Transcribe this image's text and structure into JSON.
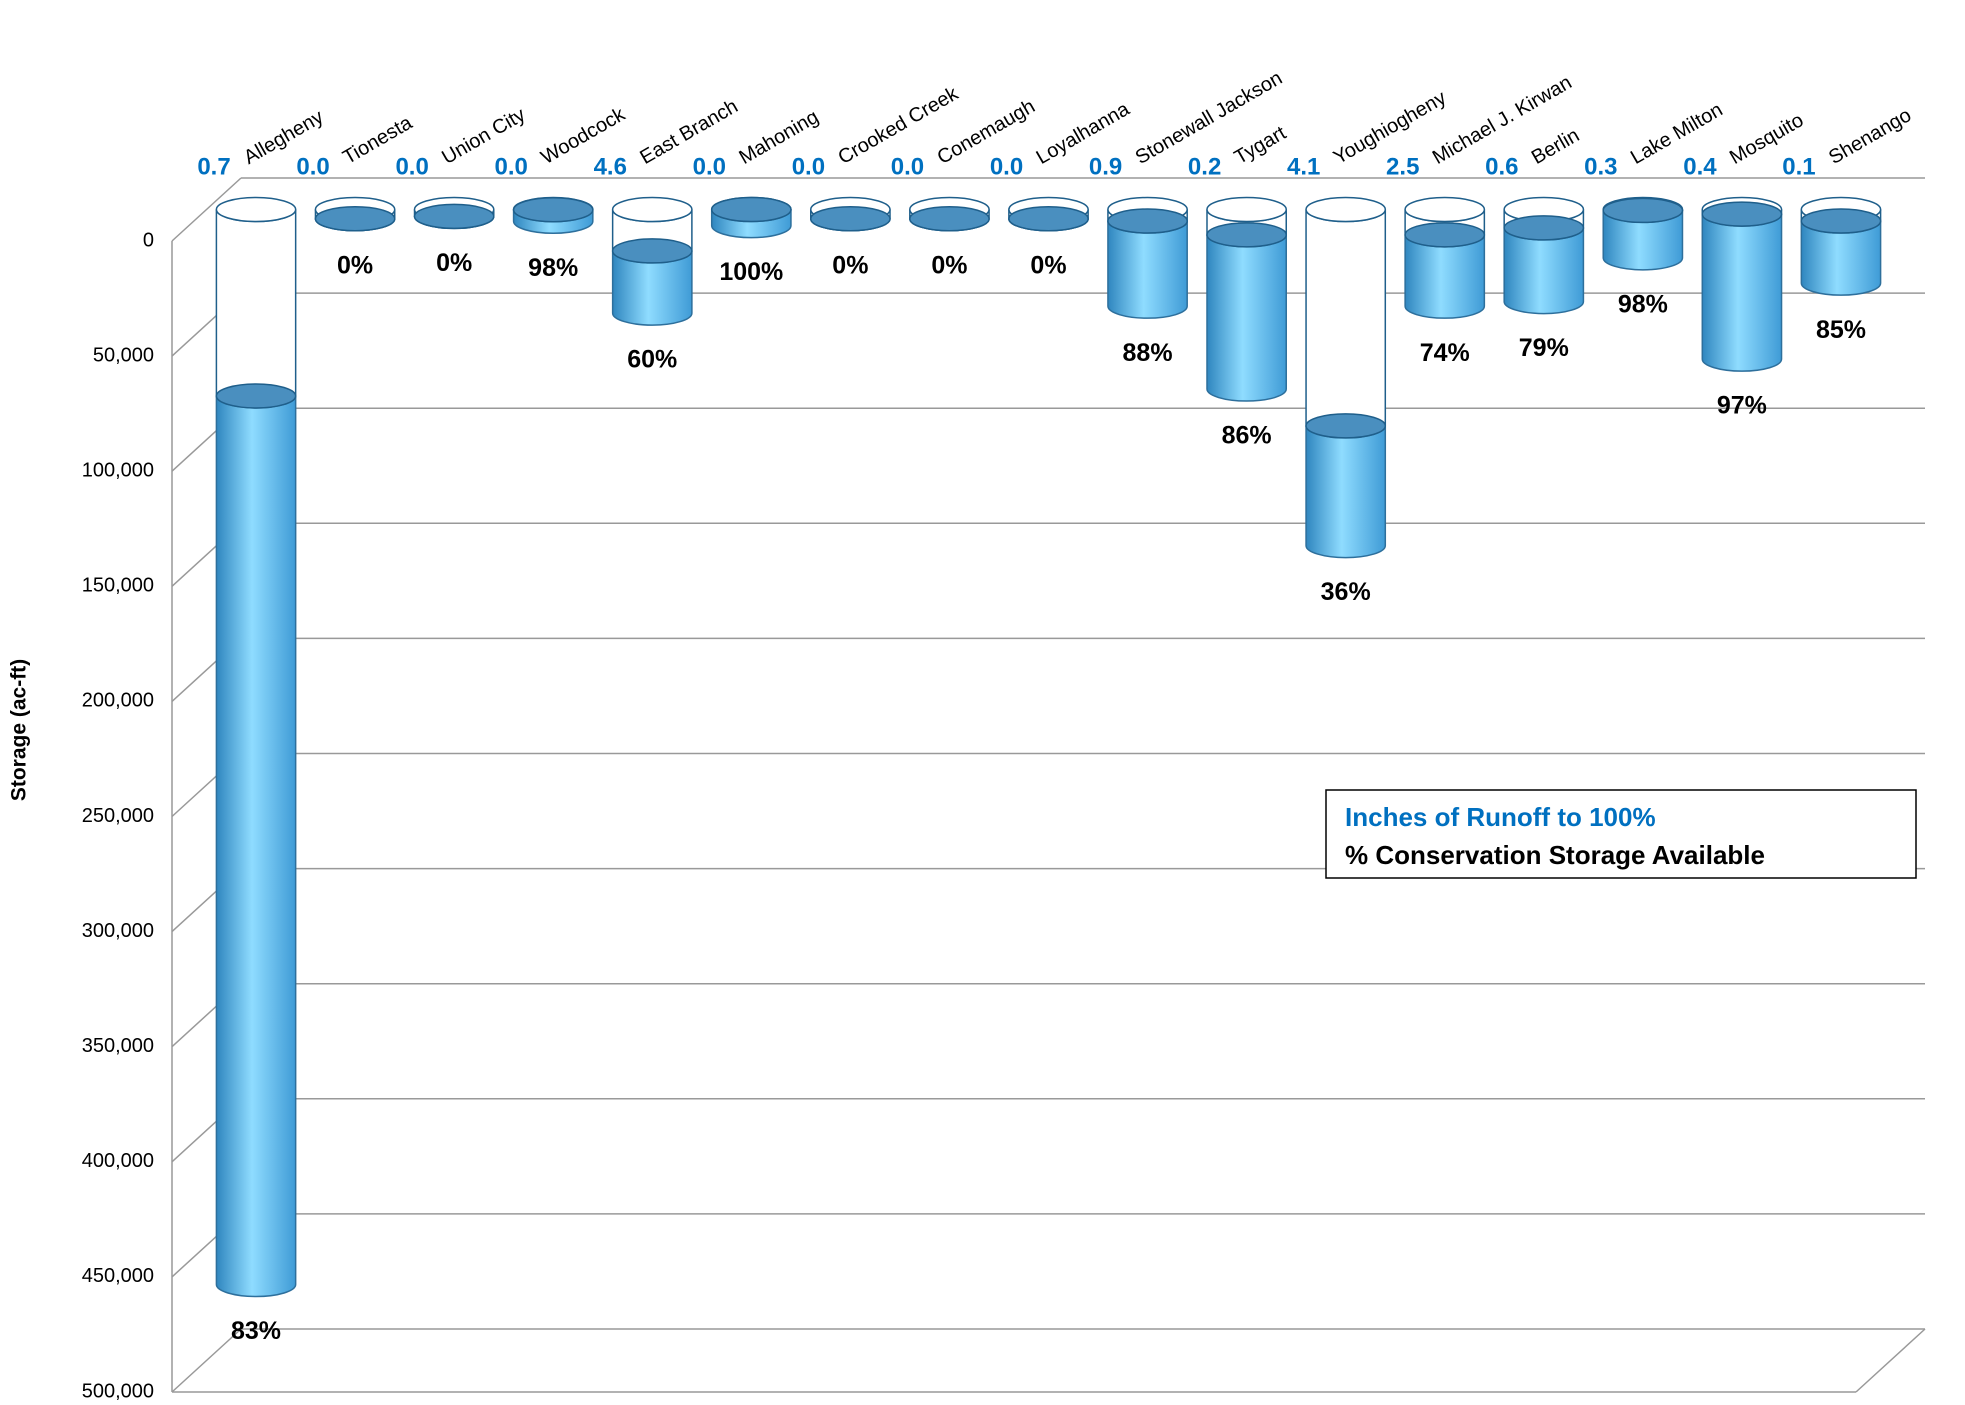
{
  "chart_data": {
    "type": "bar",
    "axis_label": "Storage (ac-ft)",
    "categories": [
      "Allegheny",
      "Tionesta",
      "Union City",
      "Woodcock",
      "East Branch",
      "Mahoning",
      "Crooked Creek",
      "Conemaugh",
      "Loyalhanna",
      "Stonewall Jackson",
      "Tygart",
      "Youghiogheny",
      "Michael J. Kirwan",
      "Berlin",
      "Lake Milton",
      "Mosquito",
      "Shenango"
    ],
    "series": [
      {
        "color": "#ffffff",
        "values": [
          81000,
          4000,
          3000,
          100,
          18000,
          0,
          4000,
          4000,
          4000,
          5000,
          11000,
          94000,
          11000,
          8000,
          400,
          2000,
          5000
        ]
      },
      {
        "color": "#5bbcf0",
        "values": [
          386000,
          0,
          0,
          5000,
          27000,
          7000,
          0,
          0,
          0,
          37000,
          67000,
          52000,
          31000,
          32000,
          20600,
          63000,
          27000
        ]
      }
    ],
    "percent_available": {
      "values": [
        83,
        0,
        0,
        98,
        60,
        100,
        0,
        0,
        0,
        88,
        86,
        36,
        74,
        79,
        98,
        97,
        85
      ],
      "value_labels": [
        "83%",
        "0%",
        "0%",
        "98%",
        "60%",
        "100%",
        "0%",
        "0%",
        "0%",
        "88%",
        "86%",
        "36%",
        "74%",
        "79%",
        "98%",
        "97%",
        "85%"
      ]
    },
    "runoff": {
      "values": [
        0.7,
        0,
        0,
        0,
        4.6,
        0,
        0,
        0,
        0,
        0.9,
        0.2,
        4.1,
        2.5,
        0.6,
        0.3,
        0.4,
        0.1
      ],
      "value_labels": [
        "0.7",
        "0.0",
        "0.0",
        "0.0",
        "4.6",
        "0.0",
        "0.0",
        "0.0",
        "0.0",
        "0.9",
        "0.2",
        "4.1",
        "2.5",
        "0.6",
        "0.3",
        "0.4",
        "0.1"
      ]
    },
    "legend_lines": [
      "Inches of Runoff to 100%",
      "% Conservation Storage Available"
    ],
    "ylim": [
      0,
      500000
    ],
    "inverted": true,
    "yticks": [
      0,
      {
        "value": 50000,
        "label": "50,000"
      },
      {
        "value": 100000,
        "label": "100,000"
      },
      {
        "value": 150000,
        "label": "150,000"
      },
      {
        "value": 200000,
        "label": "200,000"
      },
      {
        "value": 250000,
        "label": "250,000"
      },
      {
        "value": 300000,
        "label": "300,000"
      },
      {
        "value": 350000,
        "label": "350,000"
      },
      {
        "value": 400000,
        "label": "400,000"
      },
      {
        "value": 450000,
        "label": "450,000"
      },
      {
        "value": 500000,
        "label": "500,000"
      }
    ],
    "grid": true
  }
}
